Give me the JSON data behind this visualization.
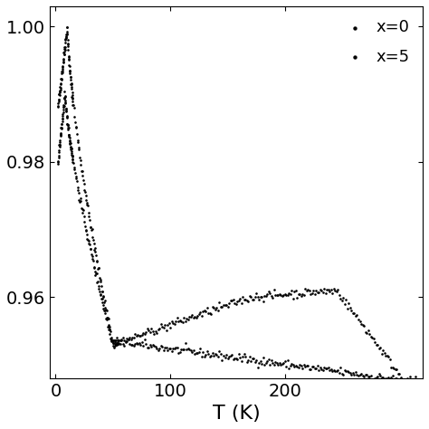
{
  "title": "",
  "xlabel": "T (K)",
  "ylabel": "",
  "xlim": [
    -5,
    320
  ],
  "ylim": [
    0.948,
    1.003
  ],
  "yticks": [
    0.96,
    0.98,
    1.0
  ],
  "xticks": [
    0,
    100,
    200
  ],
  "legend_labels": [
    "x=0",
    "x=5"
  ],
  "dot_color": "#000000",
  "dot_size": 3,
  "background_color": "#ffffff",
  "legend_fontsize": 13,
  "xlabel_fontsize": 16,
  "tick_labelsize": 14
}
